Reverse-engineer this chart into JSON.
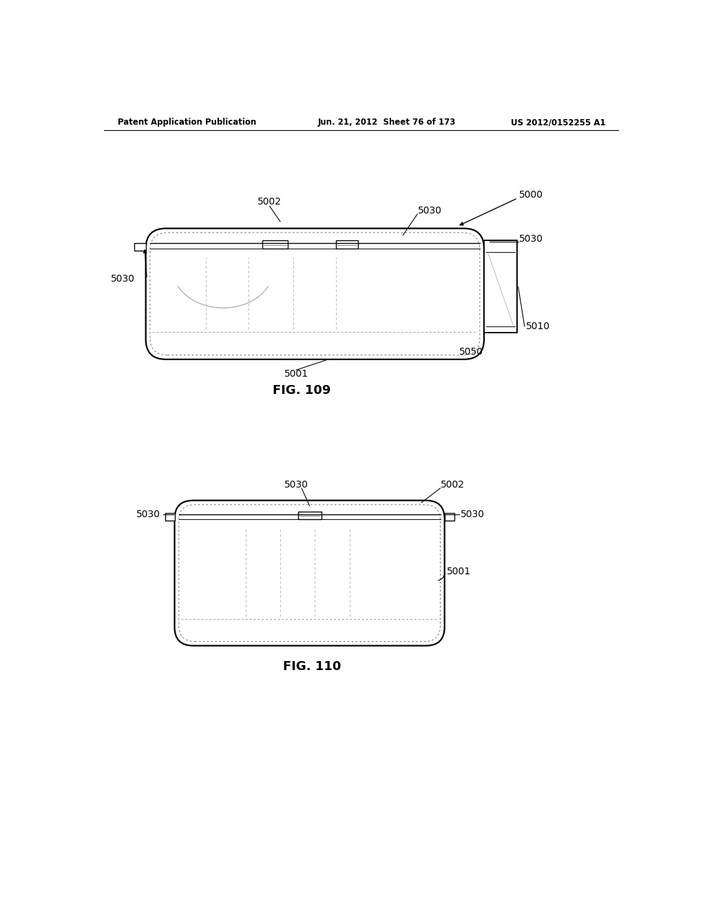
{
  "background_color": "#ffffff",
  "header_left": "Patent Application Publication",
  "header_center": "Jun. 21, 2012  Sheet 76 of 173",
  "header_right": "US 2012/0152255 A1",
  "fig109_title": "FIG. 109",
  "fig110_title": "FIG. 110",
  "line_color": "#000000",
  "dashed_color": "#888888"
}
